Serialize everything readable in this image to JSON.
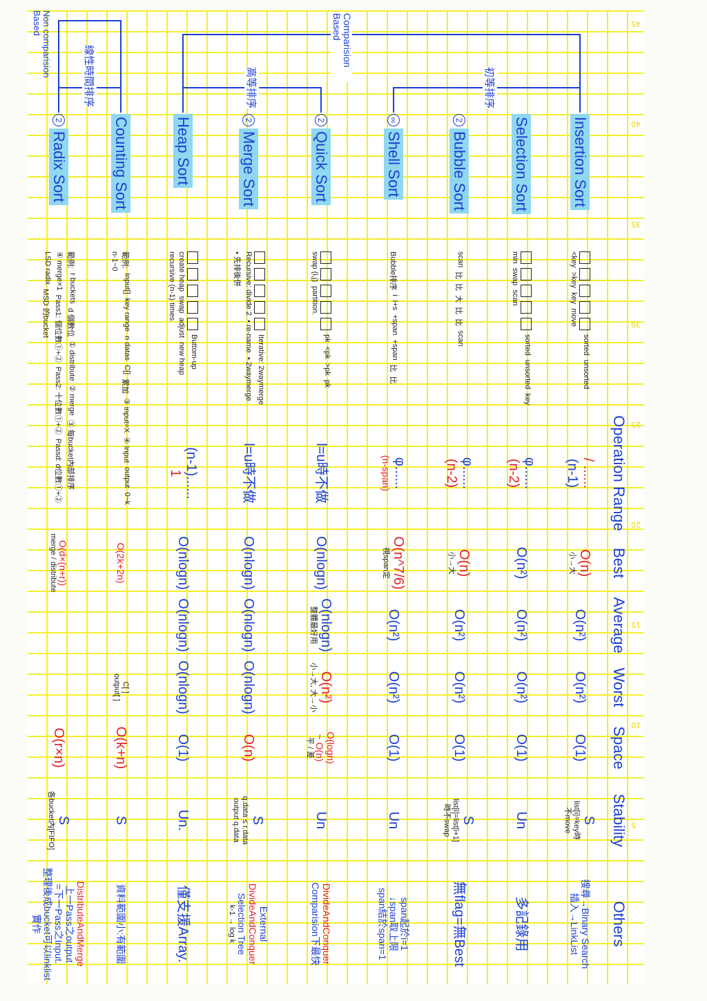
{
  "header": [
    "Operation Range",
    "Best",
    "Average",
    "Worst",
    "Space",
    "Stability",
    "Others"
  ],
  "categories": {
    "comparison": "Comparision Based",
    "non_comparison": "Non comparision Based",
    "elementary": "初等排序",
    "advanced": "高等排序",
    "linear": "線性時間排序"
  },
  "page_marks": [
    "45",
    "40",
    "35",
    "30",
    "25",
    "20",
    "15",
    "10",
    "5"
  ],
  "colors": {
    "blue": "#1c3fd2",
    "red": "#e3202a",
    "highlight": "#8fd8ef",
    "grid": "#f3ee2a"
  },
  "algorithms": [
    {
      "name": "Insertion Sort",
      "mark": "",
      "diagram": [
        "sorted",
        "unsorted",
        "<key",
        ">key",
        "key",
        "move"
      ],
      "range": [
        {
          "t": "/ ......",
          "c": "red"
        },
        {
          "t": "(n-1)",
          "c": "blue"
        }
      ],
      "best": [
        {
          "t": "O(n)",
          "c": "red"
        },
        {
          "t": "小→大",
          "c": "black"
        }
      ],
      "avg": [
        {
          "t": "O(n²)",
          "c": "blue"
        }
      ],
      "worst": [
        {
          "t": "O(n²)",
          "c": "blue"
        }
      ],
      "space": [
        {
          "t": "O(1)",
          "c": "blue"
        }
      ],
      "stab": [
        {
          "t": "S",
          "c": "blue"
        },
        {
          "t": "list[i]=key時",
          "c": "black"
        },
        {
          "t": "不move",
          "c": "black"
        }
      ],
      "others": [
        {
          "t": "搜尋→Binary Search",
          "c": "blue",
          "s": 1
        },
        {
          "t": "插入→LinkList",
          "c": "blue",
          "s": 1
        }
      ]
    },
    {
      "name": "Selection Sort",
      "mark": "",
      "diagram": [
        "sorted",
        "unsorted",
        "key",
        "min",
        "swap",
        "scan"
      ],
      "range": [
        {
          "t": "φ......",
          "c": "blue"
        },
        {
          "t": "(n-2)",
          "c": "red"
        }
      ],
      "best": [
        {
          "t": "O(n²)",
          "c": "blue"
        }
      ],
      "avg": [
        {
          "t": "O(n²)",
          "c": "blue"
        }
      ],
      "worst": [
        {
          "t": "O(n²)",
          "c": "blue"
        }
      ],
      "space": [
        {
          "t": "O(1)",
          "c": "blue"
        }
      ],
      "stab": [
        {
          "t": "Un",
          "c": "blue"
        }
      ],
      "others": [
        {
          "t": "多記錄用",
          "c": "blue"
        }
      ]
    },
    {
      "name": "Bubble Sort",
      "mark": "2",
      "diagram": [
        "scan",
        "比",
        "比",
        "大",
        "比",
        "比",
        "scan"
      ],
      "range": [
        {
          "t": "φ......",
          "c": "blue"
        },
        {
          "t": "(n-2)",
          "c": "red"
        }
      ],
      "best": [
        {
          "t": "O(n)",
          "c": "red"
        },
        {
          "t": "小→大",
          "c": "black"
        }
      ],
      "avg": [
        {
          "t": "O(n²)",
          "c": "blue"
        }
      ],
      "worst": [
        {
          "t": "O(n²)",
          "c": "blue"
        }
      ],
      "space": [
        {
          "t": "O(1)",
          "c": "blue"
        }
      ],
      "stab": [
        {
          "t": "S",
          "c": "blue"
        },
        {
          "t": "list[i]=list[i+1]",
          "c": "black"
        },
        {
          "t": "時不swap",
          "c": "black"
        }
      ],
      "others": [
        {
          "t": "無flag=無Best",
          "c": "blue"
        }
      ]
    },
    {
      "name": "Shell Sort",
      "mark": "∞",
      "diagram": [
        "Bubble排序",
        "i",
        "i+s",
        "+span",
        "+span",
        "比",
        "比"
      ],
      "range": [
        {
          "t": "φ......",
          "c": "blue"
        },
        {
          "t": "(n-span)",
          "c": "red",
          "s": 1
        }
      ],
      "best": [
        {
          "t": "O(n^7/6)",
          "c": "red"
        },
        {
          "t": "視span定",
          "c": "black"
        }
      ],
      "avg": [
        {
          "t": "O(n²)",
          "c": "blue"
        }
      ],
      "worst": [
        {
          "t": "O(n²)",
          "c": "blue"
        }
      ],
      "space": [
        {
          "t": "O(1)",
          "c": "blue"
        }
      ],
      "stab": [
        {
          "t": "Un",
          "c": "blue"
        }
      ],
      "others": [
        {
          "t": "span起於i=1",
          "c": "blue",
          "s": 1
        },
        {
          "t": "↓span取上限",
          "c": "blue",
          "s": 1
        },
        {
          "t": "span結於span=1",
          "c": "blue",
          "s": 1
        }
      ]
    },
    {
      "name": "Quick Sort",
      "mark": "2",
      "diagram": [
        "pk",
        "<pk",
        ">pk",
        "pk",
        "swap (i,j)",
        "partition."
      ],
      "range": [
        {
          "t": "l=u時不做",
          "c": "blue"
        }
      ],
      "best": [
        {
          "t": "O(nlogn)",
          "c": "blue"
        }
      ],
      "avg": [
        {
          "t": "O(nlogn)",
          "c": "blue"
        },
        {
          "t": "整體最好用",
          "c": "black"
        }
      ],
      "worst": [
        {
          "t": "O(n²)",
          "c": "red"
        },
        {
          "t": "小→大, 大→小",
          "c": "black"
        }
      ],
      "space": [
        {
          "t": "O(logn)",
          "c": "red",
          "s": 1
        },
        {
          "t": "~ O(n)",
          "c": "red",
          "s": 1
        },
        {
          "t": "平 / 差",
          "c": "black"
        }
      ],
      "stab": [
        {
          "t": "Un",
          "c": "blue"
        }
      ],
      "others": [
        {
          "t": "DivideAndConquer",
          "c": "red",
          "s": 1
        },
        {
          "t": "Comparision下最快",
          "c": "blue",
          "s": 1
        }
      ]
    },
    {
      "name": "Merge Sort",
      "mark": "2",
      "diagram": [
        "Iterative: 2waymerge",
        "Recursive: divide 2",
        "• re-name",
        "• 2waymerge",
        "• 先排後併"
      ],
      "range": [
        {
          "t": "l=u時不做",
          "c": "blue"
        }
      ],
      "best": [
        {
          "t": "O(nlogn)",
          "c": "blue"
        }
      ],
      "avg": [
        {
          "t": "O(nlogn)",
          "c": "blue"
        }
      ],
      "worst": [
        {
          "t": "O(nlogn)",
          "c": "blue"
        }
      ],
      "space": [
        {
          "t": "O(n)",
          "c": "red"
        }
      ],
      "stab": [
        {
          "t": "S",
          "c": "blue"
        },
        {
          "t": "q.data ≤ r.data",
          "c": "black"
        },
        {
          "t": "output q.data",
          "c": "black"
        }
      ],
      "others": [
        {
          "t": "External",
          "c": "blue",
          "s": 1
        },
        {
          "t": "DivideAndConquer",
          "c": "red",
          "s": 1
        },
        {
          "t": "Selection Tree",
          "c": "blue",
          "s": 1
        },
        {
          "t": "k-1 → log k",
          "c": "black"
        }
      ]
    },
    {
      "name": "Heap Sort",
      "mark": "",
      "diagram": [
        "Buttom-up",
        "create heap",
        "swap",
        "adjust",
        "new heap",
        "recursive (n-1) times"
      ],
      "range": [
        {
          "t": "(n-1)......",
          "c": "blue"
        },
        {
          "t": "1",
          "c": "red"
        }
      ],
      "best": [
        {
          "t": "O(nlogn)",
          "c": "blue"
        }
      ],
      "avg": [
        {
          "t": "O(nlogn)",
          "c": "blue"
        }
      ],
      "worst": [
        {
          "t": "O(nlogn)",
          "c": "blue"
        }
      ],
      "space": [
        {
          "t": "O(1)",
          "c": "blue"
        }
      ],
      "stab": [
        {
          "t": "Un.",
          "c": "blue"
        }
      ],
      "others": [
        {
          "t": "僅支援Array.",
          "c": "blue"
        }
      ]
    },
    {
      "name": "Counting Sort",
      "mark": "",
      "diagram": [
        "範例:",
        "Input[]",
        "key range",
        "n datas",
        "C[]",
        "累加",
        "③ input=X",
        "④ Input",
        "output",
        "0~k",
        "n-1~0"
      ],
      "range": [],
      "best": [
        {
          "t": "O(2k+2n)",
          "c": "red",
          "s": 1
        }
      ],
      "avg": [],
      "worst": [
        {
          "t": "C[ ]",
          "c": "black"
        },
        {
          "t": "output[ ]",
          "c": "black"
        }
      ],
      "space": [
        {
          "t": "O(k+n)",
          "c": "red"
        }
      ],
      "stab": [
        {
          "t": "S",
          "c": "blue"
        }
      ],
      "others": [
        {
          "t": "資料範圍小:有範圍",
          "c": "blue",
          "s": 1
        }
      ]
    },
    {
      "name": "Radix Sort",
      "mark": "2",
      "diagram": [
        "範例:",
        "r buckets",
        "d 個數位",
        "① distribute",
        "② merge",
        "③ 每bucket內部排序",
        "④ merge×1",
        "Pass1: 個位數①+②",
        "Pass2: 十位數①+②",
        "Passd: d位數①+②",
        "LSD radix",
        "MSD 的bucket"
      ],
      "range": [],
      "best": [
        {
          "t": "O(d×(n+r))",
          "c": "red",
          "s": 1
        },
        {
          "t": "merge / distribute",
          "c": "black"
        }
      ],
      "avg": [],
      "worst": [],
      "space": [
        {
          "t": "O(r×n)",
          "c": "red"
        }
      ],
      "stab": [
        {
          "t": "S",
          "c": "blue"
        },
        {
          "t": "各bucket內[FIFO]",
          "c": "black"
        }
      ],
      "others": [
        {
          "t": "DistributeAndMerge",
          "c": "red",
          "s": 1
        },
        {
          "t": "上一Pass之output",
          "c": "blue",
          "s": 1
        },
        {
          "t": "=下一Pass之Input.",
          "c": "blue",
          "s": 1
        },
        {
          "t": "整理後成bucket可以linklist實作",
          "c": "blue",
          "s": 1
        }
      ]
    }
  ]
}
